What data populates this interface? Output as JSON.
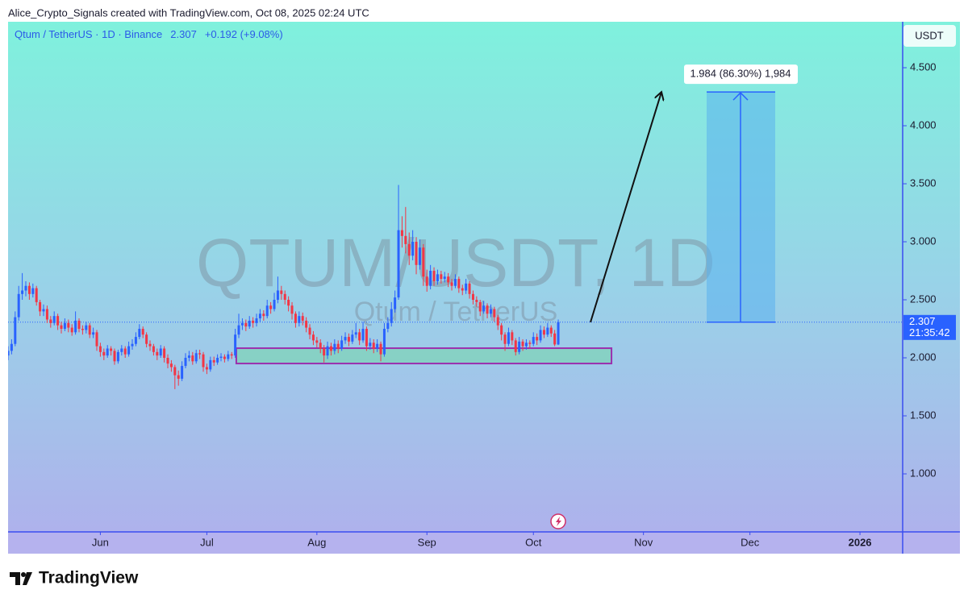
{
  "header": {
    "attribution": "Alice_Crypto_Signals created with TradingView.com, Oct 08, 2025 02:24 UTC"
  },
  "footer": {
    "brand": "TradingView"
  },
  "chart_data": {
    "type": "candlestick",
    "symbol": "Qtum / TetherUS · 1D · Binance",
    "change_label": "+0.192 (+9.08%)",
    "watermark": "QTUM/USDT, 1D",
    "watermark_sub": "Qtum / TetherUS",
    "currency": "USDT",
    "countdown": "21:35:42",
    "up_color": "#2962ff",
    "down_color": "#f23645",
    "ylim": [
      0.5,
      4.896
    ],
    "yticks": [
      {
        "value": 1,
        "label": "1.000"
      },
      {
        "value": 1.5,
        "label": "1.500"
      },
      {
        "value": 2,
        "label": "2.000"
      },
      {
        "value": 2.5,
        "label": "2.500"
      },
      {
        "value": 3,
        "label": "3.000"
      },
      {
        "value": 3.5,
        "label": "3.500"
      },
      {
        "value": 4,
        "label": "4.000"
      },
      {
        "value": 4.5,
        "label": "4.500"
      }
    ],
    "xlim": [
      0,
      251.8
    ],
    "xticks": [
      {
        "value": 26,
        "label": "Jun"
      },
      {
        "value": 56,
        "label": "Jul"
      },
      {
        "value": 87,
        "label": "Aug"
      },
      {
        "value": 118,
        "label": "Sep"
      },
      {
        "value": 148,
        "label": "Oct"
      },
      {
        "value": 179,
        "label": "Nov"
      },
      {
        "value": 209,
        "label": "Dec"
      },
      {
        "value": 240,
        "label": "2026"
      }
    ],
    "support_zone": [
      1.951,
      2.083
    ],
    "projection": {
      "change": 1.984,
      "label": "1.984 (86.30%) 1,984"
    },
    "open": [
      2.02,
      2.06,
      2.12,
      2.35,
      2.55,
      2.58,
      2.62,
      2.55,
      2.6,
      2.48,
      2.4,
      2.42,
      2.33,
      2.3,
      2.36,
      2.28,
      2.25,
      2.3,
      2.26,
      2.22,
      2.32,
      2.25,
      2.24,
      2.28,
      2.2,
      2.22,
      2.1,
      2.05,
      2.02,
      2.08,
      2.06,
      1.97,
      2.05,
      2.08,
      2.03,
      2.1,
      2.12,
      2.18,
      2.25,
      2.2,
      2.12,
      2.1,
      2.05,
      2.02,
      2.08,
      2.0,
      1.95,
      1.92,
      1.85,
      1.82,
      1.93,
      2.0,
      2.02,
      1.97,
      2.04,
      2.03,
      1.92,
      1.9,
      1.98,
      1.96,
      2.0,
      2.01,
      1.99,
      2.03,
      2.02,
      2.2,
      2.28,
      2.3,
      2.27,
      2.32,
      2.3,
      2.34,
      2.38,
      2.36,
      2.45,
      2.42,
      2.5,
      2.58,
      2.55,
      2.5,
      2.45,
      2.38,
      2.3,
      2.36,
      2.32,
      2.26,
      2.2,
      2.15,
      2.13,
      2.08,
      2.02,
      2.1,
      2.06,
      2.12,
      2.08,
      2.15,
      2.18,
      2.14,
      2.2,
      2.22,
      2.15,
      2.25,
      2.1,
      2.13,
      2.08,
      2.12,
      2.03,
      2.25,
      2.3,
      2.42,
      2.52,
      3.1,
      3.05,
      2.98,
      2.88,
      3.0,
      2.8,
      2.95,
      2.7,
      2.62,
      2.75,
      2.66,
      2.72,
      2.68,
      2.7,
      2.65,
      2.62,
      2.68,
      2.6,
      2.58,
      2.64,
      2.55,
      2.5,
      2.48,
      2.4,
      2.45,
      2.38,
      2.42,
      2.35,
      2.28,
      2.2,
      2.12,
      2.22,
      2.15,
      2.05,
      2.14,
      2.1,
      2.13,
      2.12,
      2.18,
      2.15,
      2.24,
      2.2,
      2.26,
      2.21,
      2.115
    ],
    "high": [
      2.1,
      2.16,
      2.4,
      2.62,
      2.73,
      2.66,
      2.65,
      2.64,
      2.62,
      2.5,
      2.46,
      2.45,
      2.36,
      2.4,
      2.38,
      2.31,
      2.34,
      2.33,
      2.29,
      2.4,
      2.34,
      2.28,
      2.31,
      2.3,
      2.26,
      2.24,
      2.13,
      2.08,
      2.11,
      2.1,
      2.08,
      2.07,
      2.11,
      2.1,
      2.14,
      2.16,
      2.22,
      2.29,
      2.27,
      2.22,
      2.15,
      2.12,
      2.08,
      2.11,
      2.1,
      2.03,
      1.98,
      1.94,
      1.89,
      1.97,
      2.04,
      2.06,
      2.05,
      2.07,
      2.07,
      2.05,
      1.95,
      2.01,
      2.01,
      2.03,
      2.04,
      2.03,
      2.06,
      2.05,
      2.25,
      2.38,
      2.34,
      2.33,
      2.36,
      2.35,
      2.38,
      2.42,
      2.41,
      2.5,
      2.48,
      2.56,
      2.7,
      2.62,
      2.58,
      2.53,
      2.48,
      2.4,
      2.4,
      2.39,
      2.35,
      2.29,
      2.23,
      2.18,
      2.16,
      2.11,
      2.14,
      2.13,
      2.16,
      2.15,
      2.19,
      2.22,
      2.21,
      2.24,
      2.3,
      2.25,
      2.31,
      2.27,
      2.17,
      2.16,
      2.16,
      2.14,
      2.3,
      2.35,
      2.48,
      2.58,
      3.49,
      3.22,
      3.3,
      3.08,
      3.1,
      3.04,
      3.02,
      2.98,
      2.76,
      2.8,
      2.78,
      2.76,
      2.75,
      2.74,
      2.73,
      2.68,
      2.72,
      2.7,
      2.63,
      2.68,
      2.66,
      2.58,
      2.53,
      2.5,
      2.49,
      2.47,
      2.46,
      2.44,
      2.37,
      2.3,
      2.22,
      2.26,
      2.24,
      2.17,
      2.18,
      2.16,
      2.16,
      2.15,
      2.22,
      2.21,
      2.28,
      2.27,
      2.3,
      2.28,
      2.24,
      2.33
    ],
    "low": [
      1.98,
      2.03,
      2.1,
      2.32,
      2.5,
      2.53,
      2.5,
      2.52,
      2.45,
      2.36,
      2.36,
      2.3,
      2.26,
      2.28,
      2.24,
      2.21,
      2.23,
      2.22,
      2.19,
      2.2,
      2.22,
      2.2,
      2.21,
      2.17,
      2.17,
      2.06,
      2.01,
      1.98,
      2.0,
      2.02,
      1.94,
      1.95,
      2.02,
      2.0,
      2.01,
      2.07,
      2.1,
      2.16,
      2.17,
      2.09,
      2.06,
      2.02,
      1.98,
      2.0,
      1.96,
      1.91,
      1.88,
      1.73,
      1.76,
      1.8,
      1.91,
      1.97,
      1.94,
      1.95,
      1.99,
      1.88,
      1.86,
      1.88,
      1.93,
      1.94,
      1.97,
      1.96,
      1.97,
      1.99,
      2.0,
      2.17,
      2.24,
      2.23,
      2.25,
      2.26,
      2.27,
      2.31,
      2.32,
      2.34,
      2.38,
      2.4,
      2.47,
      2.5,
      2.46,
      2.4,
      2.33,
      2.26,
      2.27,
      2.28,
      2.22,
      2.16,
      2.11,
      2.09,
      2.04,
      1.96,
      1.99,
      2.02,
      2.03,
      2.04,
      2.06,
      2.12,
      2.1,
      2.12,
      2.17,
      2.11,
      2.13,
      2.06,
      2.07,
      2.04,
      2.05,
      1.97,
      2.01,
      2.22,
      2.27,
      2.39,
      2.5,
      2.95,
      2.9,
      2.8,
      2.84,
      2.72,
      2.76,
      2.62,
      2.57,
      2.59,
      2.62,
      2.63,
      2.64,
      2.65,
      2.61,
      2.58,
      2.6,
      2.56,
      2.54,
      2.55,
      2.51,
      2.46,
      2.44,
      2.36,
      2.38,
      2.34,
      2.35,
      2.31,
      2.24,
      2.15,
      2.06,
      2.1,
      2.11,
      2.02,
      2.03,
      2.06,
      2.07,
      2.08,
      2.1,
      2.11,
      2.13,
      2.17,
      2.18,
      2.18,
      2.1,
      2.11
    ],
    "close": [
      2.06,
      2.12,
      2.35,
      2.55,
      2.58,
      2.62,
      2.55,
      2.6,
      2.48,
      2.4,
      2.42,
      2.33,
      2.3,
      2.36,
      2.28,
      2.25,
      2.3,
      2.26,
      2.22,
      2.32,
      2.25,
      2.24,
      2.28,
      2.2,
      2.22,
      2.1,
      2.05,
      2.02,
      2.08,
      2.06,
      1.97,
      2.05,
      2.08,
      2.03,
      2.1,
      2.12,
      2.18,
      2.25,
      2.2,
      2.12,
      2.1,
      2.05,
      2.02,
      2.08,
      2.0,
      1.95,
      1.92,
      1.85,
      1.82,
      1.93,
      2.0,
      2.02,
      1.97,
      2.04,
      2.03,
      1.92,
      1.9,
      1.98,
      1.96,
      2.0,
      2.01,
      1.99,
      2.03,
      2.02,
      2.2,
      2.28,
      2.3,
      2.27,
      2.32,
      2.3,
      2.34,
      2.38,
      2.36,
      2.45,
      2.42,
      2.5,
      2.58,
      2.55,
      2.5,
      2.45,
      2.38,
      2.3,
      2.36,
      2.32,
      2.26,
      2.2,
      2.15,
      2.13,
      2.08,
      2.02,
      2.1,
      2.06,
      2.12,
      2.08,
      2.15,
      2.18,
      2.14,
      2.2,
      2.22,
      2.15,
      2.25,
      2.1,
      2.13,
      2.08,
      2.12,
      2.03,
      2.25,
      2.3,
      2.42,
      2.52,
      3.1,
      3.05,
      2.98,
      2.88,
      3.0,
      2.8,
      2.95,
      2.7,
      2.62,
      2.75,
      2.66,
      2.72,
      2.68,
      2.7,
      2.65,
      2.62,
      2.68,
      2.6,
      2.58,
      2.64,
      2.55,
      2.5,
      2.48,
      2.4,
      2.45,
      2.38,
      2.42,
      2.35,
      2.28,
      2.2,
      2.12,
      2.22,
      2.15,
      2.05,
      2.14,
      2.1,
      2.13,
      2.12,
      2.18,
      2.15,
      2.24,
      2.2,
      2.26,
      2.21,
      2.115,
      2.307
    ]
  }
}
